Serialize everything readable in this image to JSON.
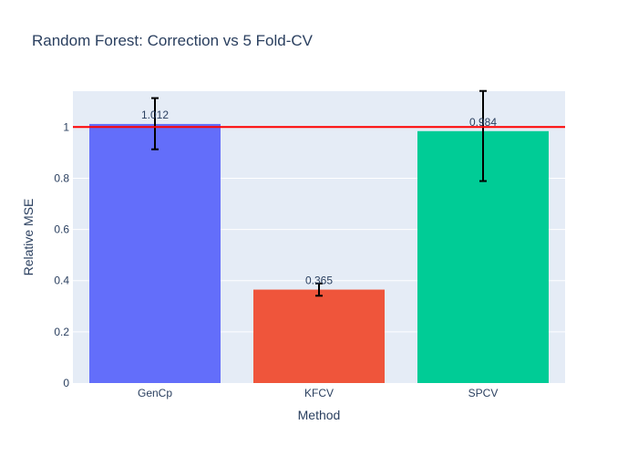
{
  "chart_data": {
    "type": "bar",
    "title": "Random Forest: Correction vs 5 Fold-CV",
    "xlabel": "Method",
    "ylabel": "Relative MSE",
    "categories": [
      "GenCp",
      "KFCV",
      "SPCV"
    ],
    "values": [
      1.012,
      0.365,
      0.984
    ],
    "data_labels": [
      "1.012",
      "0.365",
      "0.984"
    ],
    "error_low": [
      0.913,
      0.341,
      0.789
    ],
    "error_high": [
      1.113,
      0.389,
      1.141
    ],
    "bar_colors": [
      "#636efa",
      "#ef553b",
      "#00cc96"
    ],
    "ylim": [
      0,
      1.14
    ],
    "yticks": [
      0,
      0.2,
      0.4,
      0.6,
      0.8,
      1
    ],
    "ytick_labels": [
      "0",
      "0.2",
      "0.4",
      "0.6",
      "0.8",
      "1"
    ],
    "reference_line": {
      "y": 1,
      "color": "#ff0000"
    },
    "grid": true,
    "plot_background": "#e5ecf6",
    "error_bar_color": "#000000"
  }
}
